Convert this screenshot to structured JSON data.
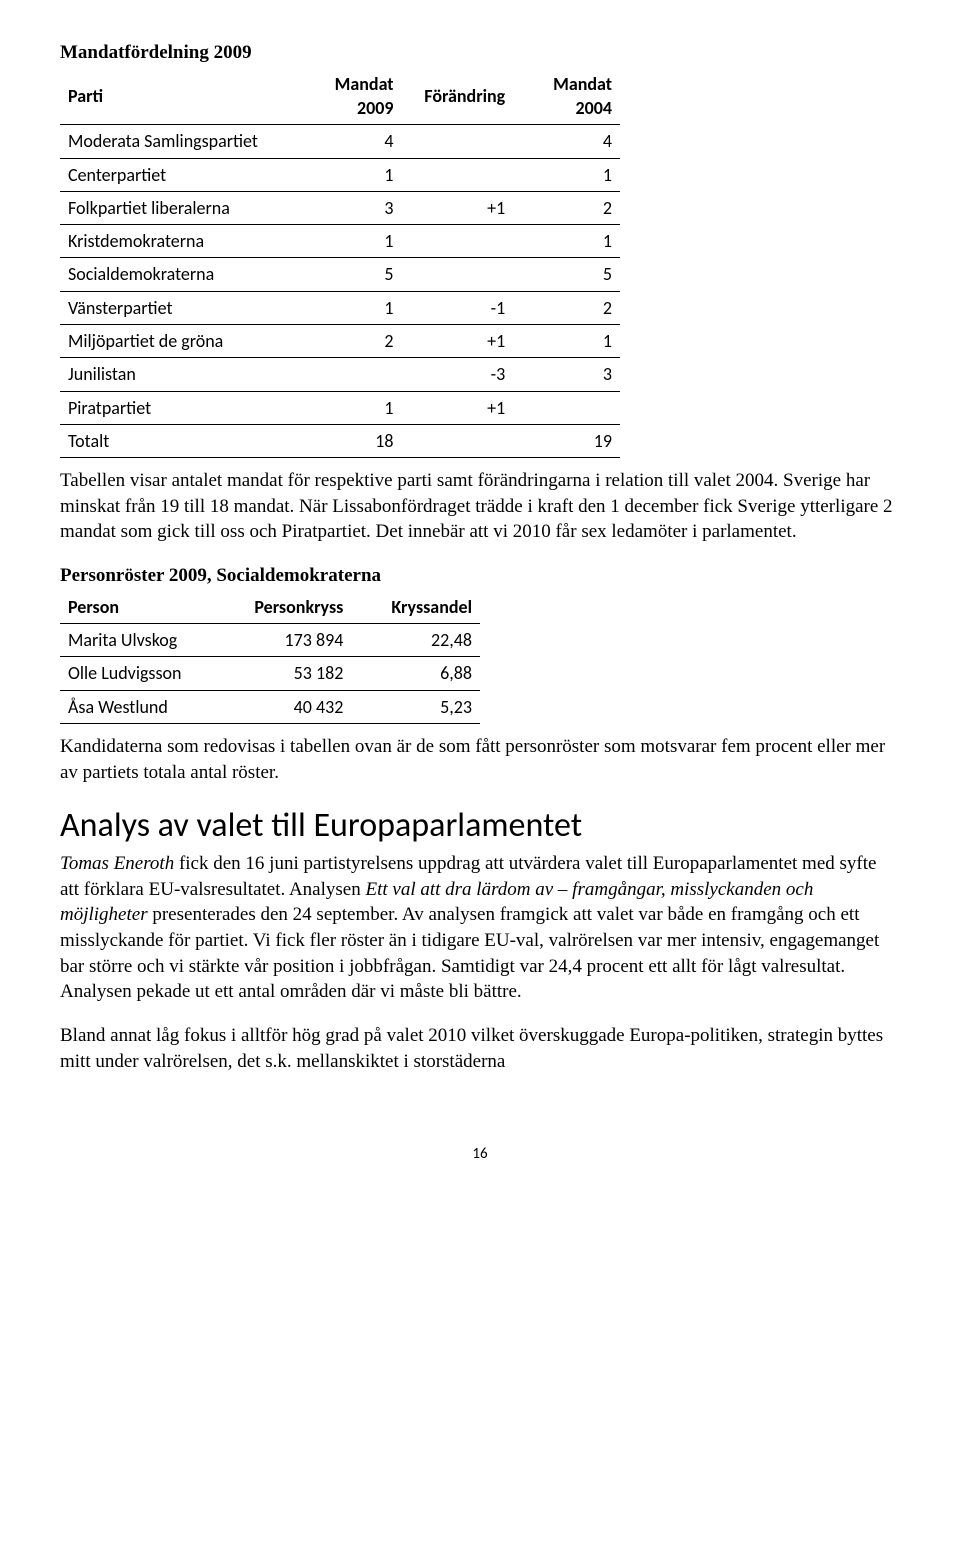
{
  "mandat_table": {
    "title": "Mandatfördelning 2009",
    "columns": [
      "Parti",
      "Mandat 2009",
      "Förändring",
      "Mandat 2004"
    ],
    "rows": [
      {
        "party": "Moderata Samlingspartiet",
        "m2009": "4",
        "change": "",
        "m2004": "4"
      },
      {
        "party": "Centerpartiet",
        "m2009": "1",
        "change": "",
        "m2004": "1"
      },
      {
        "party": "Folkpartiet liberalerna",
        "m2009": "3",
        "change": "+1",
        "m2004": "2"
      },
      {
        "party": "Kristdemokraterna",
        "m2009": "1",
        "change": "",
        "m2004": "1"
      },
      {
        "party": "Socialdemokraterna",
        "m2009": "5",
        "change": "",
        "m2004": "5"
      },
      {
        "party": "Vänsterpartiet",
        "m2009": "1",
        "change": "-1",
        "m2004": "2"
      },
      {
        "party": "Miljöpartiet de gröna",
        "m2009": "2",
        "change": "+1",
        "m2004": "1"
      },
      {
        "party": "Junilistan",
        "m2009": "",
        "change": "-3",
        "m2004": "3"
      },
      {
        "party": "Piratpartiet",
        "m2009": "1",
        "change": "+1",
        "m2004": ""
      },
      {
        "party": "Totalt",
        "m2009": "18",
        "change": "",
        "m2004": "19"
      }
    ]
  },
  "para1": "Tabellen visar antalet mandat för respektive parti samt förändringarna i relation till valet 2004. Sverige har minskat från 19 till 18 mandat. När Lissabonfördraget trädde i kraft den 1 december fick Sverige ytterligare 2 mandat som gick till oss och Piratpartiet. Det innebär att vi 2010 får sex ledamöter i parlamentet.",
  "person_table": {
    "title": "Personröster 2009, Socialdemokraterna",
    "columns": [
      "Person",
      "Personkryss",
      "Kryssandel"
    ],
    "rows": [
      {
        "person": "Marita Ulvskog",
        "kryss": "173 894",
        "andel": "22,48"
      },
      {
        "person": "Olle Ludvigsson",
        "kryss": "53 182",
        "andel": "6,88"
      },
      {
        "person": "Åsa Westlund",
        "kryss": "40 432",
        "andel": "5,23"
      }
    ]
  },
  "para2": "Kandidaterna som redovisas i tabellen ovan är de som fått personröster som motsvarar fem procent eller mer av partiets totala antal röster.",
  "section_heading": "Analys av valet till Europaparlamentet",
  "para3_runs": [
    {
      "text": "Tomas Eneroth",
      "italic": true
    },
    {
      "text": " fick den 16 juni partistyrelsens uppdrag att utvärdera valet till Europaparlamentet med syfte att förklara EU-valsresultatet. Analysen ",
      "italic": false
    },
    {
      "text": "Ett val att dra lärdom av – framgångar, misslyckanden och möjligheter",
      "italic": true
    },
    {
      "text": " presenterades den 24 september. Av analysen framgick att valet var både en framgång och ett misslyckande för partiet. Vi fick fler röster än i tidigare EU-val, valrörelsen var mer intensiv, engagemanget bar större och vi stärkte vår position i jobbfrågan. Samtidigt var 24,4 procent ett allt för lågt valresultat. Analysen pekade ut ett antal områden där vi måste bli bättre.",
      "italic": false
    }
  ],
  "para4": "Bland annat låg fokus i alltför hög grad på valet 2010 vilket överskuggade Europa-politiken, strategin byttes mitt under valrörelsen, det s.k. mellanskiktet i storstäderna",
  "page_number": "16"
}
